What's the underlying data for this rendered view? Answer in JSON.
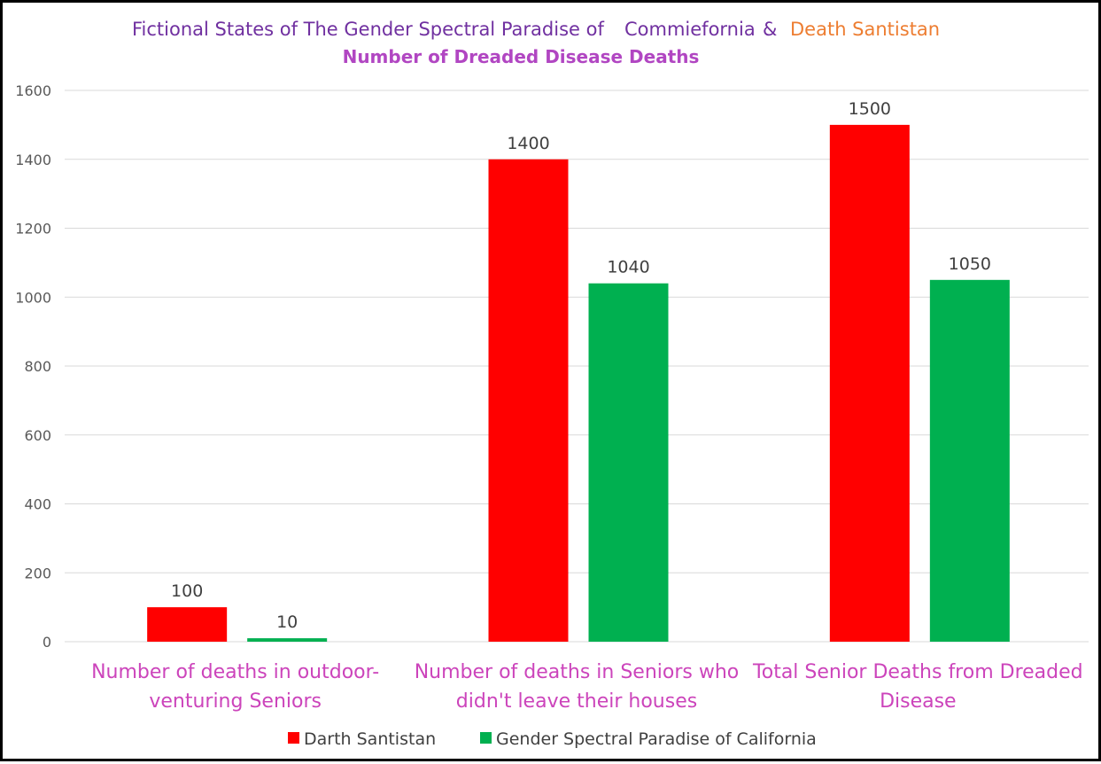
{
  "chart_data": {
    "type": "bar",
    "title_parts": {
      "main": "Fictional States of The Gender Spectral Paradise of",
      "commieformia": "Commiefornia",
      "amp": "&",
      "death": "Death Santistan"
    },
    "subtitle": "Number of Dreaded Disease Deaths",
    "categories": [
      [
        "Number of deaths in outdoor-",
        "venturing Seniors"
      ],
      [
        "Number of deaths in Seniors who",
        "didn't leave their houses"
      ],
      [
        "Total Senior Deaths from Dreaded",
        "Disease"
      ]
    ],
    "series": [
      {
        "name": "Darth Santistan",
        "color": "#ff0000",
        "values": [
          100,
          1400,
          1500
        ]
      },
      {
        "name": "Gender Spectral Paradise of California",
        "color": "#00b050",
        "values": [
          10,
          1040,
          1050
        ]
      }
    ],
    "ylim": [
      0,
      1600
    ],
    "yticks": [
      0,
      200,
      400,
      600,
      800,
      1000,
      1200,
      1400,
      1600
    ],
    "grid": true,
    "legend_position": "bottom"
  }
}
